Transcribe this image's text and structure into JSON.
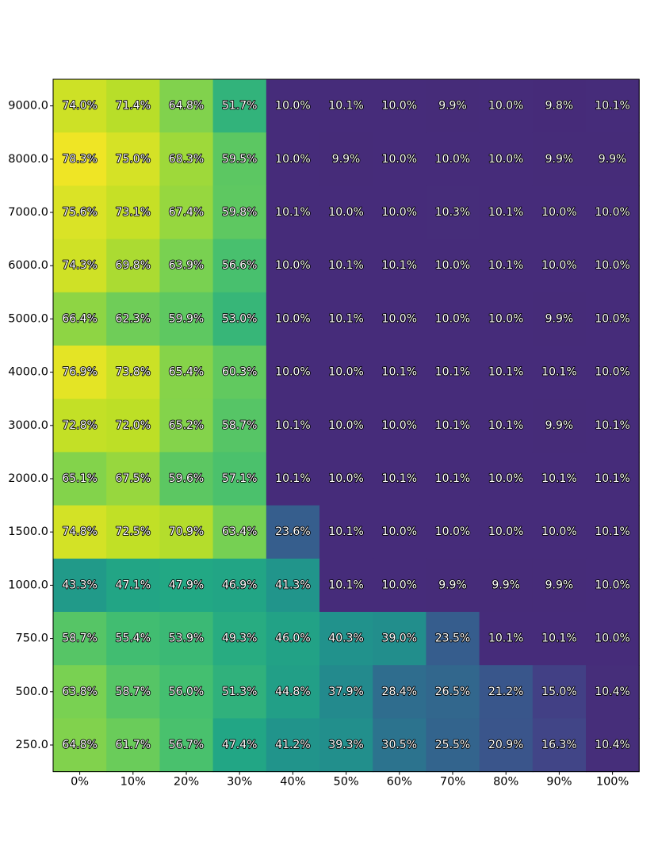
{
  "chart_data": {
    "type": "heatmap",
    "title": "",
    "xlabel": "",
    "ylabel": "",
    "colormap": "viridis",
    "value_range": [
      0.0,
      80.0
    ],
    "x_labels": [
      "0%",
      "10%",
      "20%",
      "30%",
      "40%",
      "50%",
      "60%",
      "70%",
      "80%",
      "90%",
      "100%"
    ],
    "y_labels": [
      "9000.0",
      "8000.0",
      "7000.0",
      "6000.0",
      "5000.0",
      "4000.0",
      "3000.0",
      "2000.0",
      "1500.0",
      "1000.0",
      "750.0",
      "500.0",
      "250.0"
    ],
    "values": [
      [
        74.0,
        71.4,
        64.8,
        51.7,
        10.0,
        10.1,
        10.0,
        9.9,
        10.0,
        9.8,
        10.1
      ],
      [
        78.3,
        75.0,
        68.3,
        59.5,
        10.0,
        9.9,
        10.0,
        10.0,
        10.0,
        9.9,
        9.9
      ],
      [
        75.6,
        73.1,
        67.4,
        59.8,
        10.1,
        10.0,
        10.0,
        10.3,
        10.1,
        10.0,
        10.0
      ],
      [
        74.3,
        69.8,
        63.9,
        56.6,
        10.0,
        10.1,
        10.1,
        10.0,
        10.1,
        10.0,
        10.0
      ],
      [
        66.4,
        62.3,
        59.9,
        53.0,
        10.0,
        10.1,
        10.0,
        10.0,
        10.0,
        9.9,
        10.0
      ],
      [
        76.9,
        73.8,
        65.4,
        60.3,
        10.0,
        10.0,
        10.1,
        10.1,
        10.1,
        10.1,
        10.0
      ],
      [
        72.8,
        72.0,
        65.2,
        58.7,
        10.1,
        10.0,
        10.0,
        10.1,
        10.1,
        9.9,
        10.1
      ],
      [
        65.1,
        67.5,
        59.6,
        57.1,
        10.1,
        10.0,
        10.1,
        10.1,
        10.0,
        10.1,
        10.1
      ],
      [
        74.8,
        72.5,
        70.9,
        63.4,
        23.6,
        10.1,
        10.0,
        10.0,
        10.0,
        10.0,
        10.1
      ],
      [
        43.3,
        47.1,
        47.9,
        46.9,
        41.3,
        10.1,
        10.0,
        9.9,
        9.9,
        9.9,
        10.0
      ],
      [
        58.7,
        55.4,
        53.9,
        49.3,
        46.0,
        40.3,
        39.0,
        23.5,
        10.1,
        10.1,
        10.0
      ],
      [
        63.8,
        58.7,
        56.0,
        51.3,
        44.8,
        37.9,
        28.4,
        26.5,
        21.2,
        15.0,
        10.4
      ],
      [
        64.8,
        61.7,
        56.7,
        47.4,
        41.2,
        39.3,
        30.5,
        25.5,
        20.9,
        16.3,
        10.4
      ]
    ],
    "value_suffix": "%",
    "grid": false,
    "legend": "none"
  }
}
